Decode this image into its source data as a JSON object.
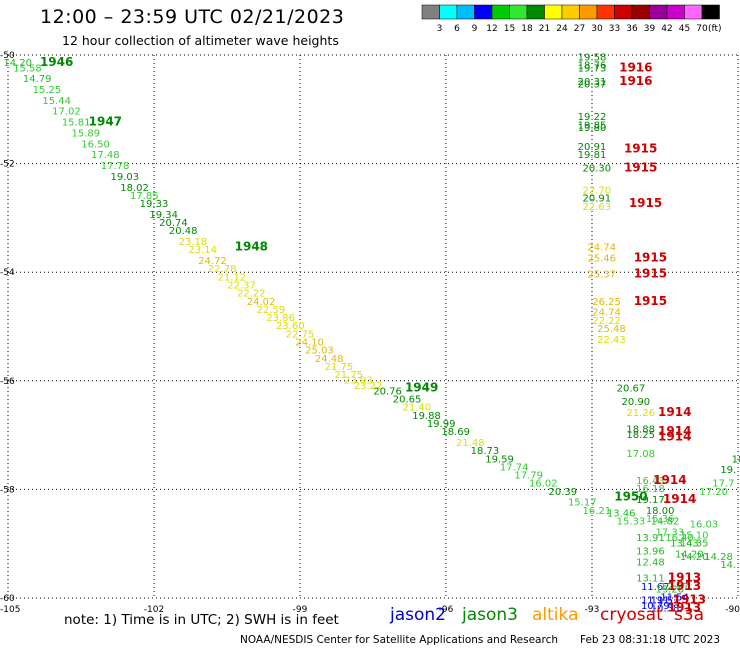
{
  "header": {
    "title": "12:00 – 23:59 UTC 02/21/2023",
    "subtitle": "12 hour collection of altimeter wave heights"
  },
  "colorbar": {
    "colors": [
      "#808080",
      "#00ffff",
      "#00bfff",
      "#0000ff",
      "#00cc00",
      "#33e633",
      "#008800",
      "#ffff00",
      "#ffcc00",
      "#ff9900",
      "#ff3300",
      "#cc0000",
      "#990000",
      "#990099",
      "#cc00cc",
      "#ff66ff",
      "#000000"
    ],
    "labels": [
      "3",
      "6",
      "9",
      "12",
      "15",
      "18",
      "21",
      "24",
      "27",
      "30",
      "33",
      "36",
      "39",
      "42",
      "45",
      "70"
    ],
    "unit": "(ft)"
  },
  "footer": {
    "note": "note: 1) Time is in UTC; 2) SWH is in feet",
    "satellites": [
      {
        "name": "jason2",
        "color": "#0000cc"
      },
      {
        "name": "jason3",
        "color": "#008800"
      },
      {
        "name": "altika",
        "color": "#ff9900"
      },
      {
        "name": "cryosat",
        "color": "#cc0000"
      },
      {
        "name": "s3a",
        "color": "#cc0000"
      }
    ],
    "credit": "NOAA/NESDIS Center for Satellite Applications and Research",
    "timestamp": "Feb 23 08:31:18 UTC 2023"
  },
  "chart_data": {
    "type": "scatter",
    "xlim": [
      -105,
      -90
    ],
    "ylim": [
      -60,
      -50
    ],
    "xticks": [
      "-105",
      "-102",
      "-99",
      "-96",
      "-93",
      "-90"
    ],
    "yticks": [
      "-50",
      "-52",
      "-54",
      "-56",
      "-58",
      "-60"
    ],
    "grid": true,
    "points": [
      {
        "lon": -104.8,
        "lat": -50.2,
        "v": "14.20"
      },
      {
        "lon": -104.6,
        "lat": -50.3,
        "v": "15.58"
      },
      {
        "lon": -104.4,
        "lat": -50.5,
        "v": "14.79"
      },
      {
        "lon": -104.2,
        "lat": -50.7,
        "v": "15.25"
      },
      {
        "lon": -104.0,
        "lat": -50.9,
        "v": "15.44"
      },
      {
        "lon": -103.8,
        "lat": -51.1,
        "v": "17.02"
      },
      {
        "lon": -103.6,
        "lat": -51.3,
        "v": "15.81"
      },
      {
        "lon": -103.4,
        "lat": -51.5,
        "v": "15.89"
      },
      {
        "lon": -103.2,
        "lat": -51.7,
        "v": "16.50"
      },
      {
        "lon": -103.0,
        "lat": -51.9,
        "v": "17.48"
      },
      {
        "lon": -102.8,
        "lat": -52.1,
        "v": "17.78"
      },
      {
        "lon": -102.6,
        "lat": -52.3,
        "v": "19.03"
      },
      {
        "lon": -102.4,
        "lat": -52.5,
        "v": "18.02"
      },
      {
        "lon": -102.2,
        "lat": -52.65,
        "v": "17.85"
      },
      {
        "lon": -102.0,
        "lat": -52.8,
        "v": "19.33"
      },
      {
        "lon": -101.8,
        "lat": -53.0,
        "v": "19.34"
      },
      {
        "lon": -101.6,
        "lat": -53.15,
        "v": "20.74"
      },
      {
        "lon": -101.4,
        "lat": -53.3,
        "v": "20.48"
      },
      {
        "lon": -101.2,
        "lat": -53.5,
        "v": "23.18"
      },
      {
        "lon": -101.0,
        "lat": -53.65,
        "v": "23.14"
      },
      {
        "lon": -100.8,
        "lat": -53.85,
        "v": "24.72"
      },
      {
        "lon": -100.6,
        "lat": -54.0,
        "v": "22.78"
      },
      {
        "lon": -100.4,
        "lat": -54.15,
        "v": "21.12"
      },
      {
        "lon": -100.2,
        "lat": -54.3,
        "v": "22.37"
      },
      {
        "lon": -100.0,
        "lat": -54.45,
        "v": "22.22"
      },
      {
        "lon": -99.8,
        "lat": -54.6,
        "v": "24.02"
      },
      {
        "lon": -99.6,
        "lat": -54.75,
        "v": "22.59"
      },
      {
        "lon": -99.4,
        "lat": -54.9,
        "v": "23.86"
      },
      {
        "lon": -99.2,
        "lat": -55.05,
        "v": "23.60"
      },
      {
        "lon": -99.0,
        "lat": -55.2,
        "v": "22.75"
      },
      {
        "lon": -98.8,
        "lat": -55.35,
        "v": "24.10"
      },
      {
        "lon": -98.6,
        "lat": -55.5,
        "v": "25.03"
      },
      {
        "lon": -98.4,
        "lat": -55.65,
        "v": "24.48"
      },
      {
        "lon": -98.2,
        "lat": -55.8,
        "v": "21.75"
      },
      {
        "lon": -98.0,
        "lat": -55.95,
        "v": "21.75"
      },
      {
        "lon": -97.8,
        "lat": -56.05,
        "v": "23.93"
      },
      {
        "lon": -97.6,
        "lat": -56.15,
        "v": "23.22"
      },
      {
        "lon": -97.2,
        "lat": -56.25,
        "v": "20.76"
      },
      {
        "lon": -96.8,
        "lat": -56.4,
        "v": "20.65"
      },
      {
        "lon": -96.6,
        "lat": -56.55,
        "v": "21.40"
      },
      {
        "lon": -96.4,
        "lat": -56.7,
        "v": "19.88"
      },
      {
        "lon": -96.1,
        "lat": -56.85,
        "v": "19.99"
      },
      {
        "lon": -95.8,
        "lat": -57.0,
        "v": "18.69"
      },
      {
        "lon": -95.5,
        "lat": -57.2,
        "v": "21.48"
      },
      {
        "lon": -95.2,
        "lat": -57.35,
        "v": "18.73"
      },
      {
        "lon": -94.9,
        "lat": -57.5,
        "v": "19.59"
      },
      {
        "lon": -94.6,
        "lat": -57.65,
        "v": "17.74"
      },
      {
        "lon": -94.3,
        "lat": -57.8,
        "v": "17.79"
      },
      {
        "lon": -94.0,
        "lat": -57.95,
        "v": "16.02"
      },
      {
        "lon": -93.6,
        "lat": -58.1,
        "v": "20.39"
      },
      {
        "lon": -93.2,
        "lat": -58.3,
        "v": "15.17"
      },
      {
        "lon": -92.9,
        "lat": -58.45,
        "v": "16.21"
      },
      {
        "lon": -93.0,
        "lat": -50.1,
        "v": "19.58"
      },
      {
        "lon": -93.0,
        "lat": -50.25,
        "v": "18.76"
      },
      {
        "lon": -93.0,
        "lat": -50.3,
        "v": "19.73"
      },
      {
        "lon": -93.0,
        "lat": -50.55,
        "v": "20.31"
      },
      {
        "lon": -93.0,
        "lat": -50.6,
        "v": "20.37"
      },
      {
        "lon": -93.0,
        "lat": -51.2,
        "v": "19.22"
      },
      {
        "lon": -93.0,
        "lat": -51.35,
        "v": "19.85"
      },
      {
        "lon": -93.0,
        "lat": -51.4,
        "v": "19.80"
      },
      {
        "lon": -93.0,
        "lat": -51.75,
        "v": "20.91"
      },
      {
        "lon": -93.0,
        "lat": -51.9,
        "v": "19.81"
      },
      {
        "lon": -92.9,
        "lat": -52.15,
        "v": "20.30"
      },
      {
        "lon": -92.9,
        "lat": -52.55,
        "v": "22.70"
      },
      {
        "lon": -92.9,
        "lat": -52.7,
        "v": "20.91"
      },
      {
        "lon": -92.9,
        "lat": -52.85,
        "v": "22.63"
      },
      {
        "lon": -92.8,
        "lat": -53.6,
        "v": "24.74"
      },
      {
        "lon": -92.8,
        "lat": -53.8,
        "v": "25.46"
      },
      {
        "lon": -92.8,
        "lat": -54.1,
        "v": "25.37"
      },
      {
        "lon": -92.7,
        "lat": -54.6,
        "v": "26.25"
      },
      {
        "lon": -92.7,
        "lat": -54.8,
        "v": "24.74"
      },
      {
        "lon": -92.7,
        "lat": -54.95,
        "v": "22.22"
      },
      {
        "lon": -92.6,
        "lat": -55.1,
        "v": "25.48"
      },
      {
        "lon": -92.6,
        "lat": -55.3,
        "v": "22.43"
      },
      {
        "lon": -92.2,
        "lat": -56.2,
        "v": "20.67"
      },
      {
        "lon": -92.1,
        "lat": -56.45,
        "v": "20.90"
      },
      {
        "lon": -92.0,
        "lat": -56.65,
        "v": "21.26"
      },
      {
        "lon": -92.0,
        "lat": -56.95,
        "v": "18.88"
      },
      {
        "lon": -92.0,
        "lat": -57.05,
        "v": "18.25"
      },
      {
        "lon": -92.0,
        "lat": -57.4,
        "v": "17.08"
      },
      {
        "lon": -91.8,
        "lat": -57.9,
        "v": "16.43"
      },
      {
        "lon": -91.8,
        "lat": -58.05,
        "v": "16.18"
      },
      {
        "lon": -92.4,
        "lat": -58.5,
        "v": "13.46"
      },
      {
        "lon": -92.2,
        "lat": -58.65,
        "v": "15.33"
      },
      {
        "lon": -91.8,
        "lat": -58.25,
        "v": "19.17"
      },
      {
        "lon": -91.6,
        "lat": -58.45,
        "v": "18.00"
      },
      {
        "lon": -91.6,
        "lat": -58.6,
        "v": "15.36"
      },
      {
        "lon": -91.5,
        "lat": -58.65,
        "v": "14.82"
      },
      {
        "lon": -91.4,
        "lat": -58.85,
        "v": "17.33"
      },
      {
        "lon": -91.8,
        "lat": -58.95,
        "v": "13.91"
      },
      {
        "lon": -91.2,
        "lat": -58.95,
        "v": "16.40"
      },
      {
        "lon": -90.7,
        "lat": -58.7,
        "v": "16.03"
      },
      {
        "lon": -90.9,
        "lat": -58.9,
        "v": "15.10"
      },
      {
        "lon": -91.1,
        "lat": -59.05,
        "v": "13.43"
      },
      {
        "lon": -90.9,
        "lat": -59.05,
        "v": "14.35"
      },
      {
        "lon": -91.8,
        "lat": -59.2,
        "v": "13.96"
      },
      {
        "lon": -91.8,
        "lat": -59.4,
        "v": "12.48"
      },
      {
        "lon": -91.0,
        "lat": -59.25,
        "v": "14.20"
      },
      {
        "lon": -90.9,
        "lat": -59.3,
        "v": "14.20"
      },
      {
        "lon": -90.4,
        "lat": -59.3,
        "v": "14.28"
      },
      {
        "lon": -90.2,
        "lat": -59.45,
        "v": "14."
      },
      {
        "lon": -91.8,
        "lat": -59.7,
        "v": "13.11"
      },
      {
        "lon": -91.7,
        "lat": -59.85,
        "v": "11.67"
      },
      {
        "lon": -91.4,
        "lat": -59.9,
        "v": "13.28"
      },
      {
        "lon": -91.3,
        "lat": -59.85,
        "v": "12.97"
      },
      {
        "lon": -91.7,
        "lat": -60.1,
        "v": "11.91"
      },
      {
        "lon": -91.5,
        "lat": -60.1,
        "v": "11.57"
      },
      {
        "lon": -91.3,
        "lat": -60.05,
        "v": "11.54"
      },
      {
        "lon": -91.7,
        "lat": -60.2,
        "v": "10.79"
      },
      {
        "lon": -91.5,
        "lat": -60.25,
        "v": "10.58"
      },
      {
        "lon": -90.2,
        "lat": -57.7,
        "v": "19."
      },
      {
        "lon": -90.0,
        "lat": -57.5,
        "v": "18"
      },
      {
        "lon": -90.3,
        "lat": -57.95,
        "v": "17.7"
      },
      {
        "lon": -90.5,
        "lat": -58.1,
        "v": "17.20"
      }
    ],
    "times": [
      {
        "lon": -104.0,
        "lat": -50.2,
        "t": "1946",
        "sat": "jason3"
      },
      {
        "lon": -103.0,
        "lat": -51.3,
        "t": "1947",
        "sat": "jason3"
      },
      {
        "lon": -100.0,
        "lat": -53.6,
        "t": "1948",
        "sat": "jason3"
      },
      {
        "lon": -96.5,
        "lat": -56.2,
        "t": "1949",
        "sat": "jason3"
      },
      {
        "lon": -92.2,
        "lat": -58.2,
        "t": "1950",
        "sat": "jason3"
      },
      {
        "lon": -92.1,
        "lat": -50.3,
        "t": "1916",
        "sat": "cryosat"
      },
      {
        "lon": -92.1,
        "lat": -50.55,
        "t": "1916",
        "sat": "cryosat"
      },
      {
        "lon": -92.0,
        "lat": -51.8,
        "t": "1915",
        "sat": "cryosat"
      },
      {
        "lon": -92.0,
        "lat": -52.15,
        "t": "1915",
        "sat": "cryosat"
      },
      {
        "lon": -91.9,
        "lat": -52.8,
        "t": "1915",
        "sat": "cryosat"
      },
      {
        "lon": -91.8,
        "lat": -53.8,
        "t": "1915",
        "sat": "cryosat"
      },
      {
        "lon": -91.8,
        "lat": -54.1,
        "t": "1915",
        "sat": "cryosat"
      },
      {
        "lon": -91.8,
        "lat": -54.6,
        "t": "1915",
        "sat": "cryosat"
      },
      {
        "lon": -91.3,
        "lat": -56.65,
        "t": "1914",
        "sat": "cryosat"
      },
      {
        "lon": -91.3,
        "lat": -57.0,
        "t": "1914",
        "sat": "cryosat"
      },
      {
        "lon": -91.3,
        "lat": -57.1,
        "t": "1914",
        "sat": "cryosat"
      },
      {
        "lon": -91.4,
        "lat": -57.9,
        "t": "1914",
        "sat": "cryosat"
      },
      {
        "lon": -91.2,
        "lat": -58.25,
        "t": "1914",
        "sat": "cryosat"
      },
      {
        "lon": -91.1,
        "lat": -59.7,
        "t": "1913",
        "sat": "cryosat"
      },
      {
        "lon": -91.1,
        "lat": -59.85,
        "t": "1913",
        "sat": "cryosat"
      },
      {
        "lon": -91.0,
        "lat": -60.1,
        "t": "1913",
        "sat": "cryosat"
      },
      {
        "lon": -91.1,
        "lat": -60.25,
        "t": "1913",
        "sat": "cryosat"
      }
    ]
  }
}
